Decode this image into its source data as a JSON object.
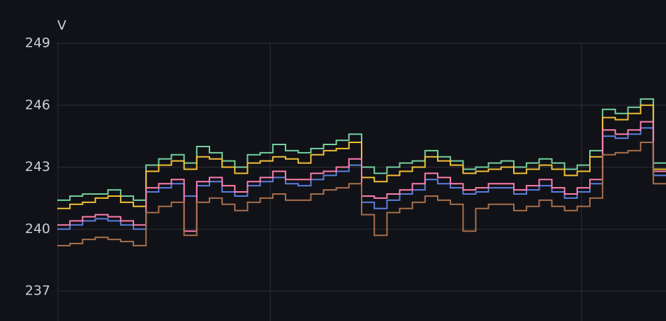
{
  "chart_data": {
    "type": "line",
    "step": true,
    "y_label": "V",
    "categories": [
      null,
      null,
      null,
      null,
      null,
      null,
      null,
      null,
      null,
      null,
      null,
      null,
      null,
      null,
      null,
      null,
      null,
      null,
      null,
      null,
      null,
      null,
      null,
      null,
      null,
      null,
      null,
      null,
      null,
      null,
      null,
      null,
      null,
      null,
      null,
      null,
      null,
      null,
      null,
      null,
      null,
      null,
      null,
      null,
      null,
      null,
      null,
      null
    ],
    "ylim": [
      235.55,
      249
    ],
    "yticks": [
      237,
      240,
      243,
      246,
      249
    ],
    "grid": true,
    "series": [
      {
        "color": "#73d2a0",
        "values": [
          241.4,
          241.6,
          241.7,
          241.7,
          241.9,
          241.6,
          241.4,
          243.1,
          243.4,
          243.6,
          243.2,
          244.0,
          243.7,
          243.3,
          243.0,
          243.6,
          243.7,
          244.1,
          243.8,
          243.7,
          243.9,
          244.1,
          244.3,
          244.6,
          243.0,
          242.7,
          243.0,
          243.2,
          243.3,
          243.8,
          243.5,
          243.3,
          242.9,
          243.0,
          243.2,
          243.3,
          243.0,
          243.2,
          243.4,
          243.2,
          242.9,
          243.1,
          243.8,
          245.8,
          245.6,
          245.9,
          246.3,
          243.2
        ]
      },
      {
        "color": "#f2c037",
        "values": [
          241.0,
          241.2,
          241.3,
          241.5,
          241.6,
          241.3,
          241.1,
          242.8,
          243.1,
          243.3,
          242.9,
          243.5,
          243.4,
          243.0,
          242.7,
          243.2,
          243.3,
          243.5,
          243.4,
          243.2,
          243.6,
          243.8,
          243.9,
          244.2,
          242.5,
          242.3,
          242.6,
          242.8,
          243.0,
          243.5,
          243.3,
          243.1,
          242.7,
          242.8,
          242.9,
          243.0,
          242.7,
          242.9,
          243.1,
          242.9,
          242.6,
          242.8,
          243.5,
          245.4,
          245.3,
          245.6,
          246.0,
          242.9
        ]
      },
      {
        "color": "#5a7fe0",
        "values": [
          240.0,
          240.2,
          240.4,
          240.5,
          240.4,
          240.2,
          240.0,
          241.8,
          242.0,
          242.2,
          241.6,
          242.1,
          242.3,
          241.8,
          241.6,
          242.1,
          242.3,
          242.5,
          242.2,
          242.1,
          242.4,
          242.6,
          242.8,
          243.1,
          241.3,
          241.0,
          241.4,
          241.7,
          241.9,
          242.4,
          242.2,
          242.0,
          241.7,
          241.8,
          242.0,
          242.0,
          241.7,
          241.9,
          242.1,
          241.8,
          241.5,
          241.8,
          242.2,
          244.5,
          244.4,
          244.6,
          244.9,
          242.6
        ]
      },
      {
        "color": "#ff7eae",
        "values": [
          240.2,
          240.4,
          240.6,
          240.7,
          240.6,
          240.4,
          240.2,
          242.0,
          242.2,
          242.4,
          239.9,
          242.3,
          242.5,
          242.1,
          241.8,
          242.3,
          242.5,
          242.8,
          242.4,
          242.4,
          242.7,
          242.8,
          243.0,
          243.4,
          241.6,
          241.5,
          241.7,
          241.9,
          242.2,
          242.7,
          242.5,
          242.2,
          241.9,
          242.0,
          242.2,
          242.2,
          241.9,
          242.1,
          242.4,
          242.0,
          241.7,
          242.0,
          242.4,
          244.8,
          244.6,
          244.8,
          245.2,
          242.8
        ]
      },
      {
        "color": "#a86f4c",
        "values": [
          239.2,
          239.3,
          239.5,
          239.6,
          239.5,
          239.4,
          239.2,
          240.8,
          241.1,
          241.3,
          239.7,
          241.3,
          241.5,
          241.2,
          240.9,
          241.3,
          241.5,
          241.7,
          241.4,
          241.4,
          241.7,
          241.9,
          242.0,
          242.2,
          240.7,
          239.7,
          240.8,
          241.0,
          241.3,
          241.6,
          241.4,
          241.2,
          239.9,
          241.0,
          241.2,
          241.2,
          240.9,
          241.1,
          241.4,
          241.1,
          240.9,
          241.1,
          241.5,
          243.6,
          243.7,
          243.8,
          244.2,
          242.2
        ]
      }
    ]
  }
}
